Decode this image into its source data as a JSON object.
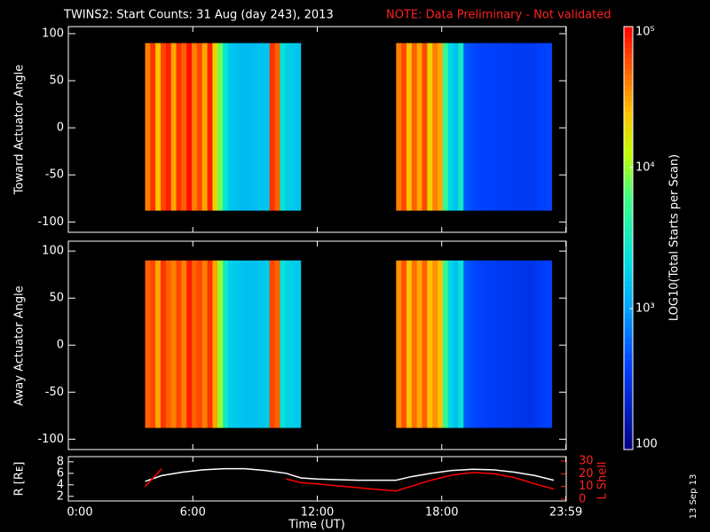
{
  "chart_data": [
    {
      "type": "spectrogram",
      "title": "TWINS2: Start Counts: 31 Aug (day 243), 2013",
      "subtitle": "NOTE: Data Preliminary - Not validated",
      "ylabel": "Toward Actuator Angle",
      "xlim": [
        0,
        24
      ],
      "ylim": [
        -111,
        107.5
      ],
      "yticks": [
        -100,
        -50,
        0,
        50,
        100
      ],
      "xticks": [
        {
          "value": 0,
          "label": "0:00"
        },
        {
          "value": 6,
          "label": "6:00"
        },
        {
          "value": 12,
          "label": "12:00"
        },
        {
          "value": 18,
          "label": "18:00"
        },
        {
          "value": 23.983,
          "label": "23:59"
        }
      ],
      "yrange": [
        -88,
        90
      ],
      "blocks": [
        {
          "bins": [
            3.7,
            3.95,
            4.2,
            4.45,
            4.7,
            4.95,
            5.2,
            5.45,
            5.7,
            5.95,
            6.2,
            6.45,
            6.7,
            6.95,
            7.2,
            7.45,
            7.7,
            7.95,
            8.2,
            8.45,
            8.7,
            8.95,
            9.2,
            9.45,
            9.7,
            9.95,
            10.2,
            10.45,
            10.7,
            10.95,
            11.2
          ],
          "values": [
            40000,
            70000,
            25000,
            60000,
            80000,
            30000,
            70000,
            50000,
            90000,
            40000,
            60000,
            30000,
            80000,
            20000,
            8000,
            2500,
            1600,
            1500,
            1400,
            1400,
            1400,
            1500,
            1500,
            1600,
            70000,
            50000,
            2500,
            1800,
            1700,
            1600
          ]
        },
        {
          "bins": [
            15.8,
            16.05,
            16.3,
            16.55,
            16.8,
            17.05,
            17.3,
            17.55,
            17.8,
            18.05,
            18.3,
            18.55,
            18.8,
            19.05,
            19.3,
            19.55,
            19.8,
            20.05,
            20.3,
            20.55,
            20.8,
            21.05,
            21.3,
            21.55,
            21.8,
            22.05,
            22.3,
            22.55,
            22.8,
            23.05,
            23.3
          ],
          "values": [
            40000,
            60000,
            25000,
            50000,
            30000,
            60000,
            20000,
            40000,
            30000,
            5000,
            2000,
            1500,
            3000,
            500,
            450,
            420,
            400,
            400,
            380,
            380,
            370,
            370,
            360,
            360,
            350,
            350,
            360,
            380,
            400,
            420
          ]
        }
      ]
    },
    {
      "type": "spectrogram",
      "ylabel": "Away Actuator Angle",
      "xlim": [
        0,
        24
      ],
      "ylim": [
        -111,
        110.5
      ],
      "yticks": [
        -100,
        -50,
        0,
        50,
        100
      ],
      "yrange": [
        -88,
        90
      ],
      "blocks": [
        {
          "bins": [
            3.7,
            3.95,
            4.2,
            4.45,
            4.7,
            4.95,
            5.2,
            5.45,
            5.7,
            5.95,
            6.2,
            6.45,
            6.7,
            6.95,
            7.2,
            7.45,
            7.7,
            7.95,
            8.2,
            8.45,
            8.7,
            8.95,
            9.2,
            9.45,
            9.7,
            9.95,
            10.2,
            10.45,
            10.7,
            10.95,
            11.2
          ],
          "values": [
            50000,
            60000,
            30000,
            70000,
            50000,
            40000,
            60000,
            40000,
            80000,
            50000,
            60000,
            40000,
            70000,
            30000,
            10000,
            3000,
            1800,
            1700,
            1600,
            1500,
            1500,
            1500,
            1600,
            1700,
            60000,
            50000,
            2500,
            1900,
            1800,
            1700
          ]
        },
        {
          "bins": [
            15.8,
            16.05,
            16.3,
            16.55,
            16.8,
            17.05,
            17.3,
            17.55,
            17.8,
            18.05,
            18.3,
            18.55,
            18.8,
            19.05,
            19.3,
            19.55,
            19.8,
            20.05,
            20.3,
            20.55,
            20.8,
            21.05,
            21.3,
            21.55,
            21.8,
            22.05,
            22.3,
            22.55,
            22.8,
            23.05,
            23.3
          ],
          "values": [
            35000,
            55000,
            25000,
            45000,
            30000,
            50000,
            25000,
            35000,
            25000,
            5000,
            2000,
            1500,
            2500,
            500,
            450,
            420,
            400,
            380,
            370,
            360,
            350,
            340,
            330,
            320,
            310,
            300,
            320,
            350,
            380,
            400
          ]
        }
      ],
      "colorbar": {
        "label": "LOG10(Total Starts per Scan)",
        "log": true,
        "lim": [
          100,
          100000
        ],
        "ticks": [
          {
            "value": 100,
            "label": "100"
          },
          {
            "value": 1000,
            "label": "10³"
          },
          {
            "value": 10000,
            "label": "10⁴"
          },
          {
            "value": 100000,
            "label": "10⁵"
          }
        ]
      }
    },
    {
      "type": "line",
      "xlabel": "Time (UT)",
      "xlim": [
        0,
        24
      ],
      "xticks": [
        {
          "value": 0,
          "label": "0:00"
        },
        {
          "value": 6,
          "label": "6:00"
        },
        {
          "value": 12,
          "label": "12:00"
        },
        {
          "value": 18,
          "label": "18:00"
        },
        {
          "value": 23.983,
          "label": "23:59"
        }
      ],
      "ylim": [
        1.2,
        8.9
      ],
      "yticks": [
        2,
        4,
        6,
        8
      ],
      "y2lim": [
        -1.4,
        33.5
      ],
      "y2ticks": [
        0,
        10,
        20,
        30
      ],
      "x": [
        3.7,
        4.5,
        5.5,
        6.5,
        7.5,
        8.5,
        9.5,
        10.5,
        11.2,
        12,
        13,
        14,
        15,
        15.8,
        16.5,
        17.5,
        18.5,
        19.5,
        20.5,
        21.5,
        22.5,
        23.4
      ],
      "series": [
        {
          "name": "R [Rᴇ]",
          "color": "#ffffff",
          "values": [
            4.6,
            5.6,
            6.2,
            6.6,
            6.8,
            6.8,
            6.5,
            6,
            5.2,
            5,
            4.9,
            4.8,
            4.8,
            4.8,
            5.4,
            6,
            6.5,
            6.7,
            6.6,
            6.2,
            5.6,
            4.8
          ]
        },
        {
          "name": "L Shell",
          "color": "#ff0000",
          "axis": "y2",
          "values": [
            10,
            24,
            null,
            null,
            null,
            null,
            null,
            16,
            13,
            12,
            10.5,
            9,
            7.5,
            6.5,
            10,
            15,
            19,
            21,
            20,
            17,
            12,
            8
          ]
        }
      ],
      "annotation": "13 Sep 13"
    }
  ]
}
